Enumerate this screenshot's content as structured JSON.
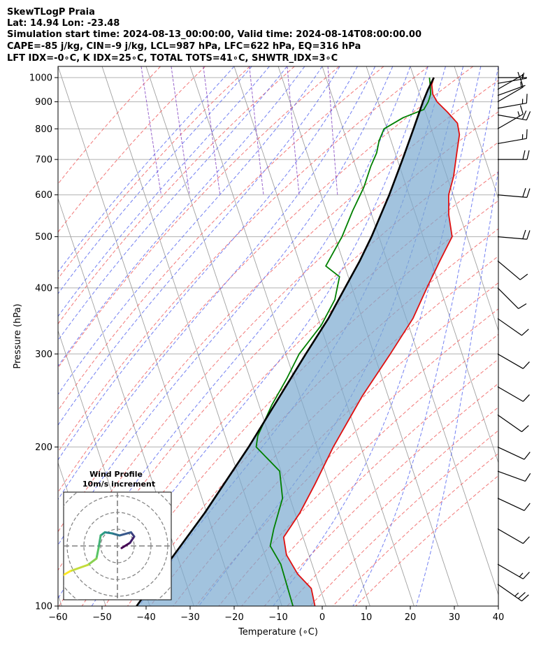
{
  "header": {
    "line1": "SkewTLogP Praia",
    "line2": "Lat: 14.94   Lon: -23.48",
    "line3": "Simulation start time: 2024-08-13_00:00:00, Valid time: 2024-08-14T08:00:00.00",
    "line4": "CAPE=-85 j/kg, CIN=-9 j/kg, LCL=987 hPa, LFC=622 hPa, EQ=316 hPa",
    "line5": "LFT IDX=-0∘C, K IDX=25∘C, TOTAL TOTS=41∘C, SHWTR_IDX=3∘C"
  },
  "chart_data": {
    "type": "skewt-logp",
    "xlabel": "Temperature (∘C)",
    "ylabel": "Pressure (hPa)",
    "xlim": [
      -60,
      40
    ],
    "ylim_hpa": [
      1050,
      100
    ],
    "x_ticks": [
      -60,
      -50,
      -40,
      -30,
      -20,
      -10,
      0,
      10,
      20,
      30,
      40
    ],
    "x_tick_labels": [
      "−60",
      "−50",
      "−40",
      "−30",
      "−20",
      "−10",
      "0",
      "10",
      "20",
      "30",
      "40"
    ],
    "y_ticks": [
      1000,
      900,
      800,
      700,
      600,
      500,
      400,
      300,
      200,
      100
    ],
    "y_tick_labels": [
      "1000",
      "900",
      "800",
      "700",
      "600",
      "500",
      "400",
      "300",
      "200",
      "100"
    ],
    "skew_per_decade_degC": 40,
    "grid": true,
    "colors": {
      "temperature": "#e01010",
      "dewpoint": "#008000",
      "parcel": "#000000",
      "cape_fill": "#e87070",
      "cin_fill": "#7aaad0",
      "dry_adiabat": "#f06060",
      "moist_adiabat": "#5a6af0",
      "mixing_ratio": "#8040c0",
      "isotherm": "#a0a0a0"
    },
    "temperature_profile": [
      {
        "p": 1000,
        "t": 24.5
      },
      {
        "p": 970,
        "t": 23.5
      },
      {
        "p": 930,
        "t": 23.0
      },
      {
        "p": 900,
        "t": 23.4
      },
      {
        "p": 860,
        "t": 25.0
      },
      {
        "p": 820,
        "t": 26.4
      },
      {
        "p": 780,
        "t": 26.0
      },
      {
        "p": 720,
        "t": 24.0
      },
      {
        "p": 650,
        "t": 21.5
      },
      {
        "p": 600,
        "t": 19.0
      },
      {
        "p": 550,
        "t": 17.5
      },
      {
        "p": 500,
        "t": 16.6
      },
      {
        "p": 450,
        "t": 12.0
      },
      {
        "p": 400,
        "t": 7.0
      },
      {
        "p": 350,
        "t": 1.5
      },
      {
        "p": 300,
        "t": -6.3
      },
      {
        "p": 250,
        "t": -15.8
      },
      {
        "p": 200,
        "t": -26.3
      },
      {
        "p": 170,
        "t": -33.3
      },
      {
        "p": 150,
        "t": -38.9
      },
      {
        "p": 135,
        "t": -44.4
      },
      {
        "p": 125,
        "t": -45.1
      },
      {
        "p": 115,
        "t": -44.0
      },
      {
        "p": 108,
        "t": -42.0
      },
      {
        "p": 100,
        "t": -42.5
      }
    ],
    "dewpoint_profile": [
      {
        "p": 1000,
        "t": 23.5
      },
      {
        "p": 960,
        "t": 23.0
      },
      {
        "p": 930,
        "t": 22.5
      },
      {
        "p": 900,
        "t": 21.4
      },
      {
        "p": 870,
        "t": 19.8
      },
      {
        "p": 840,
        "t": 14.5
      },
      {
        "p": 800,
        "t": 9.3
      },
      {
        "p": 760,
        "t": 7.3
      },
      {
        "p": 720,
        "t": 5.8
      },
      {
        "p": 680,
        "t": 3.5
      },
      {
        "p": 620,
        "t": 0.3
      },
      {
        "p": 560,
        "t": -4.0
      },
      {
        "p": 500,
        "t": -8.4
      },
      {
        "p": 440,
        "t": -14.3
      },
      {
        "p": 420,
        "t": -12.0
      },
      {
        "p": 380,
        "t": -14.8
      },
      {
        "p": 340,
        "t": -19.8
      },
      {
        "p": 300,
        "t": -27.0
      },
      {
        "p": 270,
        "t": -31.6
      },
      {
        "p": 240,
        "t": -37.1
      },
      {
        "p": 210,
        "t": -42.6
      },
      {
        "p": 200,
        "t": -43.8
      },
      {
        "p": 180,
        "t": -40.3
      },
      {
        "p": 160,
        "t": -41.7
      },
      {
        "p": 140,
        "t": -46.0
      },
      {
        "p": 130,
        "t": -48.1
      },
      {
        "p": 120,
        "t": -47.1
      },
      {
        "p": 100,
        "t": -47.5
      }
    ],
    "parcel_profile": [
      {
        "p": 1000,
        "t": 24.5
      },
      {
        "p": 950,
        "t": 22.3
      },
      {
        "p": 900,
        "t": 20.2
      },
      {
        "p": 800,
        "t": 16.0
      },
      {
        "p": 700,
        "t": 11.2
      },
      {
        "p": 600,
        "t": 5.5
      },
      {
        "p": 500,
        "t": -1.7
      },
      {
        "p": 450,
        "t": -6.2
      },
      {
        "p": 400,
        "t": -11.6
      },
      {
        "p": 350,
        "t": -17.7
      },
      {
        "p": 300,
        "t": -25.5
      },
      {
        "p": 250,
        "t": -34.5
      },
      {
        "p": 200,
        "t": -45.5
      },
      {
        "p": 150,
        "t": -60.5
      },
      {
        "p": 100,
        "t": -83.0
      }
    ],
    "inset": {
      "title": "Wind Profile",
      "subtitle": "10m/s increment",
      "hodograph": [
        {
          "u": 0.4,
          "v": -0.2
        },
        {
          "u": 1.2,
          "v": 0.3
        },
        {
          "u": 1.6,
          "v": 0.9
        },
        {
          "u": 1.3,
          "v": 1.3
        },
        {
          "u": 0.2,
          "v": 1.0
        },
        {
          "u": -0.5,
          "v": 1.2
        },
        {
          "u": -1.2,
          "v": 1.3
        },
        {
          "u": -1.6,
          "v": 1.0
        },
        {
          "u": -1.8,
          "v": -0.2
        },
        {
          "u": -2.0,
          "v": -1.2
        },
        {
          "u": -2.8,
          "v": -1.8
        },
        {
          "u": -4.5,
          "v": -2.4
        },
        {
          "u": -5.2,
          "v": -2.8
        }
      ]
    },
    "wind_barbs": [
      {
        "p": 1000,
        "speed_kt": 5,
        "dir_deg": 90
      },
      {
        "p": 975,
        "speed_kt": 5,
        "dir_deg": 80
      },
      {
        "p": 950,
        "speed_kt": 5,
        "dir_deg": 60
      },
      {
        "p": 925,
        "speed_kt": 5,
        "dir_deg": 70
      },
      {
        "p": 900,
        "speed_kt": 10,
        "dir_deg": 60
      },
      {
        "p": 875,
        "speed_kt": 15,
        "dir_deg": 80
      },
      {
        "p": 850,
        "speed_kt": 20,
        "dir_deg": 100
      },
      {
        "p": 800,
        "speed_kt": 15,
        "dir_deg": 60
      },
      {
        "p": 750,
        "speed_kt": 15,
        "dir_deg": 80
      },
      {
        "p": 700,
        "speed_kt": 20,
        "dir_deg": 90
      },
      {
        "p": 600,
        "speed_kt": 20,
        "dir_deg": 95
      },
      {
        "p": 500,
        "speed_kt": 20,
        "dir_deg": 95
      },
      {
        "p": 450,
        "speed_kt": 10,
        "dir_deg": 130
      },
      {
        "p": 400,
        "speed_kt": 10,
        "dir_deg": 135
      },
      {
        "p": 350,
        "speed_kt": 10,
        "dir_deg": 125
      },
      {
        "p": 300,
        "speed_kt": 10,
        "dir_deg": 120
      },
      {
        "p": 260,
        "speed_kt": 10,
        "dir_deg": 120
      },
      {
        "p": 230,
        "speed_kt": 10,
        "dir_deg": 125
      },
      {
        "p": 200,
        "speed_kt": 10,
        "dir_deg": 115
      },
      {
        "p": 180,
        "speed_kt": 10,
        "dir_deg": 110
      },
      {
        "p": 160,
        "speed_kt": 10,
        "dir_deg": 115
      },
      {
        "p": 140,
        "speed_kt": 10,
        "dir_deg": 120
      },
      {
        "p": 120,
        "speed_kt": 15,
        "dir_deg": 120
      },
      {
        "p": 110,
        "speed_kt": 25,
        "dir_deg": 125
      }
    ]
  }
}
